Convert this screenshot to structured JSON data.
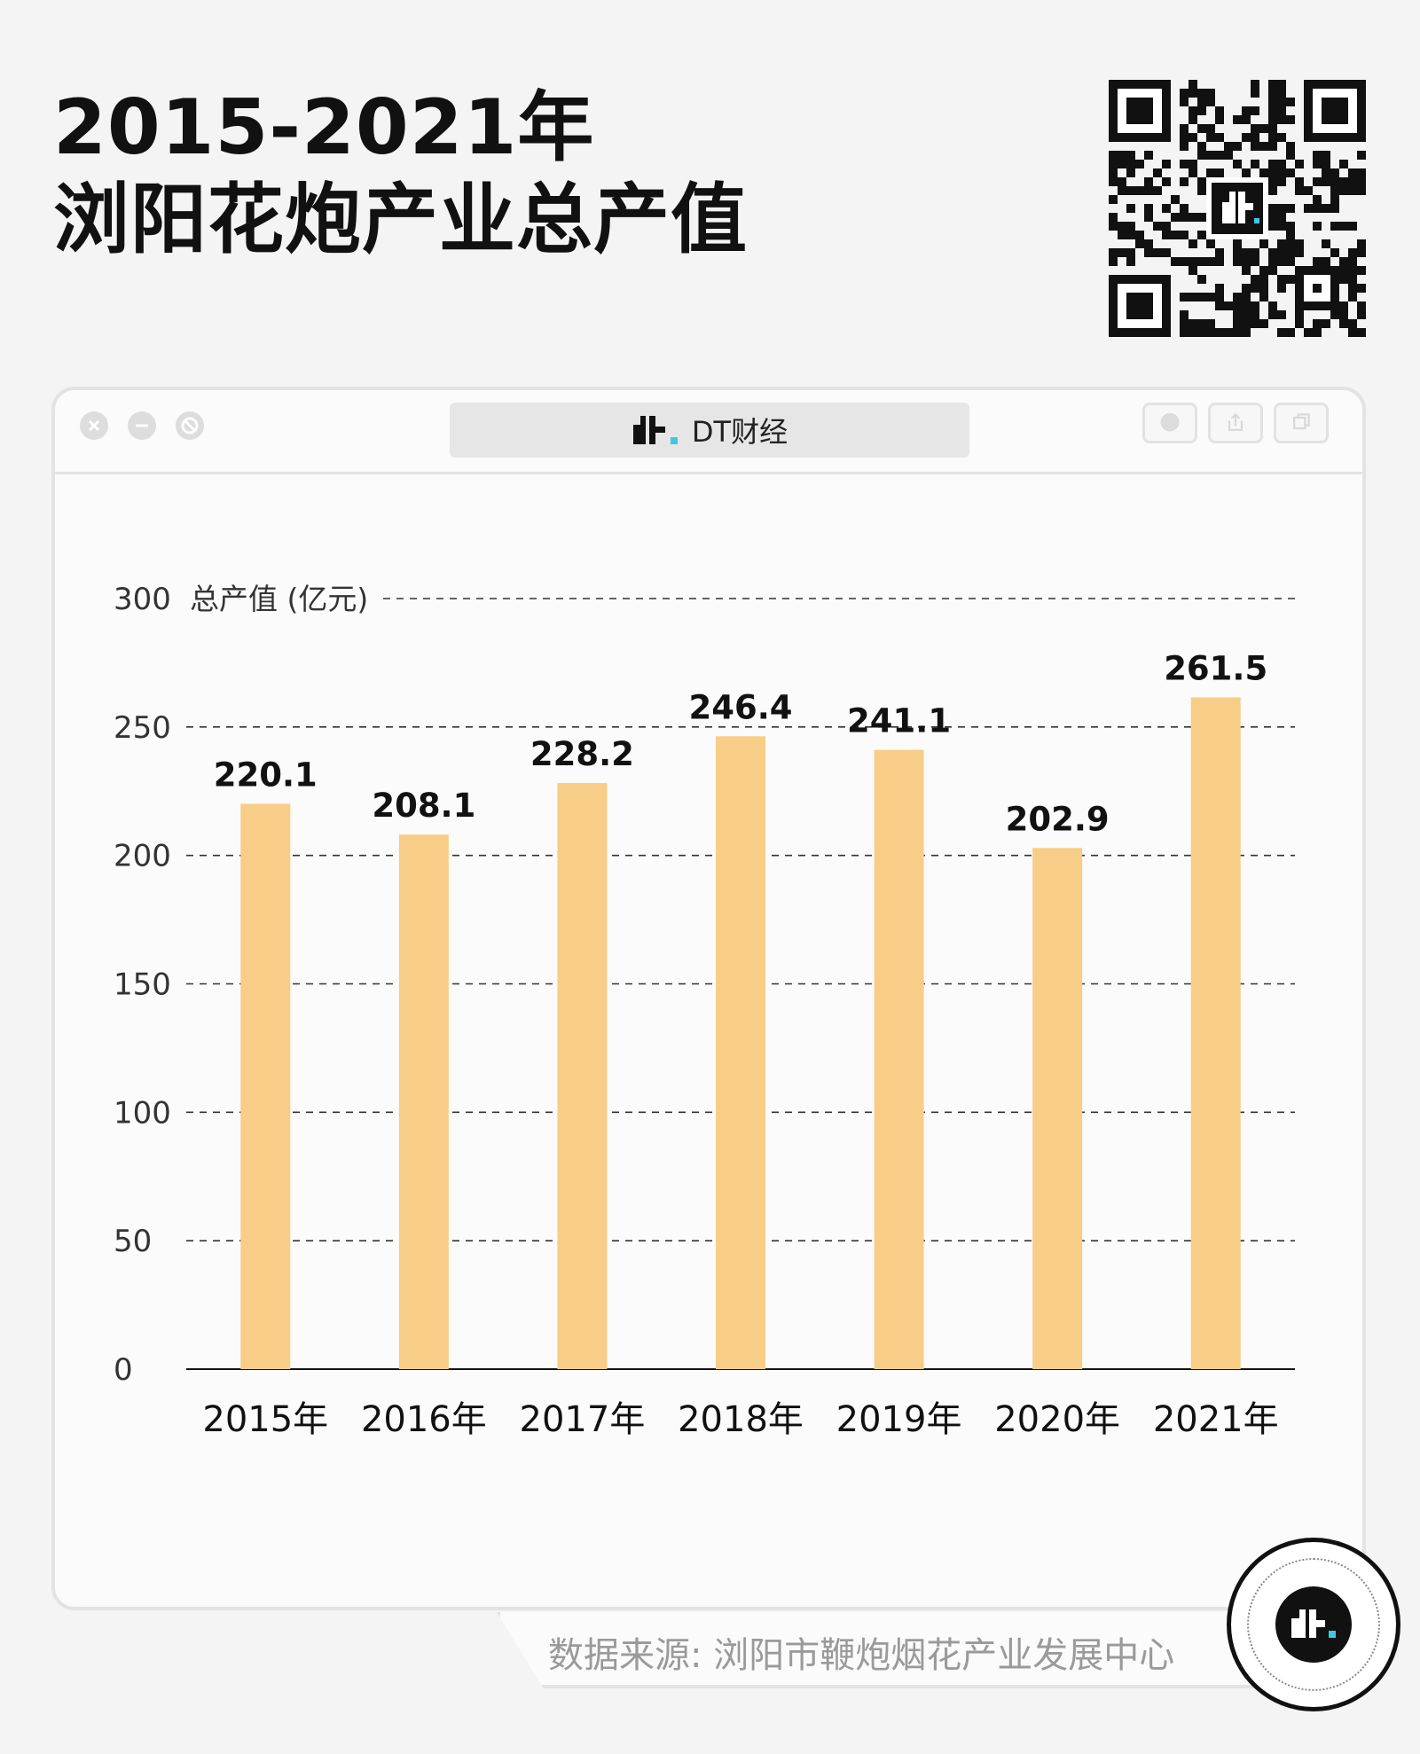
{
  "title_line1": "2015-2021年",
  "title_line2": "浏阳花炮产业总产值",
  "qr_code": "qr-code-icon",
  "window": {
    "tab_label": "DT财经",
    "logo": "dt-logo-icon",
    "controls": [
      "close-icon",
      "minimize-icon",
      "block-icon"
    ],
    "actions": [
      "record-icon",
      "share-icon",
      "copy-icon"
    ]
  },
  "chart_data": {
    "type": "bar",
    "categories": [
      "2015年",
      "2016年",
      "2017年",
      "2018年",
      "2019年",
      "2020年",
      "2021年"
    ],
    "values": [
      220.1,
      208.1,
      228.2,
      246.4,
      241.1,
      202.9,
      261.5
    ],
    "value_labels": [
      "220.1",
      "208.1",
      "228.2",
      "246.4",
      "241.1",
      "202.9",
      "261.5"
    ],
    "ylabel": "总产值 (亿元)",
    "ylim": [
      0,
      300
    ],
    "yticks": [
      "0",
      "50",
      "100",
      "150",
      "200",
      "250",
      "300"
    ],
    "grid": true,
    "bar_color": "#f7cd87"
  },
  "source_text": "数据来源: 浏阳市鞭炮烟花产业发展中心",
  "badge": "dt-badge-icon"
}
